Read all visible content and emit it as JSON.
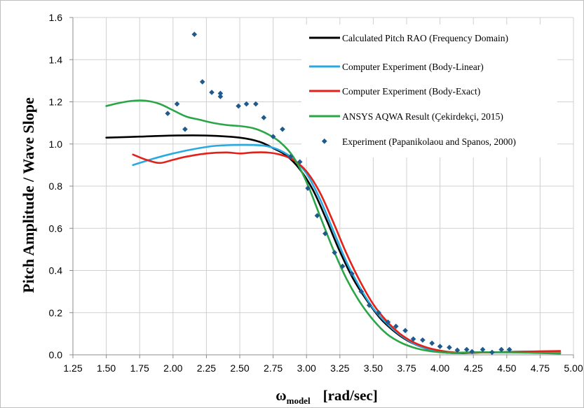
{
  "chart_data": {
    "type": "line",
    "title": "",
    "xlabel_main": "ω",
    "xlabel_sub": "model",
    "xlabel_unit": "[rad/sec]",
    "ylabel": "Pitch Amplitude / Wave Slope",
    "xlim": [
      1.25,
      5.0
    ],
    "ylim": [
      0.0,
      1.6
    ],
    "x_ticks": [
      1.25,
      1.5,
      1.75,
      2.0,
      2.25,
      2.5,
      2.75,
      3.0,
      3.25,
      3.5,
      3.75,
      4.0,
      4.25,
      4.5,
      4.75,
      5.0
    ],
    "x_tick_labels": [
      "1.25",
      "1.50",
      "1.75",
      "2.00",
      "2.25",
      "2.50",
      "2.75",
      "3.00",
      "3.25",
      "3.50",
      "3.75",
      "4.00",
      "4.25",
      "4.50",
      "4.75",
      "5.00"
    ],
    "y_ticks": [
      0.0,
      0.2,
      0.4,
      0.6,
      0.8,
      1.0,
      1.2,
      1.4,
      1.6
    ],
    "y_tick_labels": [
      "0.0",
      "0.2",
      "0.4",
      "0.6",
      "0.8",
      "1.0",
      "1.2",
      "1.4",
      "1.6"
    ],
    "grid": true,
    "legend_position": "top-right",
    "series": [
      {
        "name": "Calculated Pitch RAO (Frequency Domain)",
        "kind": "line",
        "color": "#000000",
        "points": [
          [
            1.5,
            1.03
          ],
          [
            1.75,
            1.035
          ],
          [
            2.0,
            1.04
          ],
          [
            2.25,
            1.04
          ],
          [
            2.5,
            1.03
          ],
          [
            2.65,
            1.01
          ],
          [
            2.75,
            0.98
          ],
          [
            2.85,
            0.945
          ],
          [
            2.95,
            0.88
          ],
          [
            3.05,
            0.78
          ],
          [
            3.15,
            0.64
          ],
          [
            3.25,
            0.49
          ],
          [
            3.35,
            0.36
          ],
          [
            3.45,
            0.26
          ],
          [
            3.55,
            0.175
          ],
          [
            3.65,
            0.115
          ],
          [
            3.75,
            0.07
          ],
          [
            3.85,
            0.04
          ],
          [
            3.95,
            0.02
          ],
          [
            4.05,
            0.01
          ],
          [
            4.15,
            0.008
          ],
          [
            4.25,
            0.01
          ],
          [
            4.4,
            0.012
          ],
          [
            4.6,
            0.012
          ],
          [
            4.9,
            0.01
          ]
        ]
      },
      {
        "name": "Computer Experiment (Body-Linear)",
        "kind": "line",
        "color": "#29a9e0",
        "points": [
          [
            1.7,
            0.9
          ],
          [
            1.85,
            0.93
          ],
          [
            2.0,
            0.955
          ],
          [
            2.15,
            0.975
          ],
          [
            2.3,
            0.99
          ],
          [
            2.45,
            0.995
          ],
          [
            2.6,
            0.995
          ],
          [
            2.7,
            0.99
          ],
          [
            2.8,
            0.97
          ],
          [
            2.9,
            0.93
          ],
          [
            3.0,
            0.86
          ],
          [
            3.1,
            0.74
          ],
          [
            3.2,
            0.59
          ],
          [
            3.3,
            0.44
          ],
          [
            3.4,
            0.32
          ],
          [
            3.5,
            0.22
          ],
          [
            3.6,
            0.15
          ],
          [
            3.7,
            0.095
          ],
          [
            3.8,
            0.055
          ],
          [
            3.9,
            0.03
          ],
          [
            4.0,
            0.015
          ],
          [
            4.1,
            0.008
          ],
          [
            4.2,
            0.01
          ],
          [
            4.4,
            0.012
          ],
          [
            4.6,
            0.012
          ],
          [
            4.9,
            0.01
          ]
        ]
      },
      {
        "name": "Computer Experiment (Body-Exact)",
        "kind": "line",
        "color": "#e32119",
        "points": [
          [
            1.7,
            0.95
          ],
          [
            1.8,
            0.925
          ],
          [
            1.9,
            0.91
          ],
          [
            2.0,
            0.925
          ],
          [
            2.1,
            0.94
          ],
          [
            2.25,
            0.955
          ],
          [
            2.4,
            0.96
          ],
          [
            2.5,
            0.955
          ],
          [
            2.6,
            0.96
          ],
          [
            2.7,
            0.96
          ],
          [
            2.8,
            0.95
          ],
          [
            2.9,
            0.925
          ],
          [
            3.0,
            0.87
          ],
          [
            3.1,
            0.77
          ],
          [
            3.2,
            0.63
          ],
          [
            3.3,
            0.48
          ],
          [
            3.4,
            0.35
          ],
          [
            3.5,
            0.24
          ],
          [
            3.6,
            0.16
          ],
          [
            3.7,
            0.1
          ],
          [
            3.8,
            0.06
          ],
          [
            3.9,
            0.035
          ],
          [
            4.0,
            0.02
          ],
          [
            4.1,
            0.012
          ],
          [
            4.2,
            0.01
          ],
          [
            4.4,
            0.012
          ],
          [
            4.6,
            0.015
          ],
          [
            4.9,
            0.018
          ]
        ]
      },
      {
        "name": "ANSYS AQWA Result (Çekirdekçi, 2015)",
        "kind": "line",
        "color": "#2aa648",
        "points": [
          [
            1.5,
            1.18
          ],
          [
            1.6,
            1.195
          ],
          [
            1.7,
            1.205
          ],
          [
            1.8,
            1.205
          ],
          [
            1.9,
            1.19
          ],
          [
            2.0,
            1.16
          ],
          [
            2.1,
            1.13
          ],
          [
            2.2,
            1.115
          ],
          [
            2.3,
            1.1
          ],
          [
            2.4,
            1.09
          ],
          [
            2.5,
            1.085
          ],
          [
            2.6,
            1.075
          ],
          [
            2.7,
            1.05
          ],
          [
            2.8,
            1.01
          ],
          [
            2.9,
            0.94
          ],
          [
            3.0,
            0.82
          ],
          [
            3.1,
            0.66
          ],
          [
            3.2,
            0.5
          ],
          [
            3.3,
            0.36
          ],
          [
            3.4,
            0.25
          ],
          [
            3.5,
            0.165
          ],
          [
            3.6,
            0.1
          ],
          [
            3.7,
            0.06
          ],
          [
            3.8,
            0.035
          ],
          [
            3.9,
            0.02
          ],
          [
            4.0,
            0.012
          ],
          [
            4.1,
            0.01
          ],
          [
            4.25,
            0.012
          ],
          [
            4.5,
            0.012
          ],
          [
            4.9,
            0.006
          ]
        ]
      },
      {
        "name": "Experiment (Papanikolaou and Spanos, 2000)",
        "kind": "scatter",
        "color": "#1f5a8c",
        "points": [
          [
            1.96,
            1.145
          ],
          [
            2.03,
            1.19
          ],
          [
            2.09,
            1.07
          ],
          [
            2.16,
            1.52
          ],
          [
            2.22,
            1.295
          ],
          [
            2.29,
            1.245
          ],
          [
            2.355,
            1.225
          ],
          [
            2.355,
            1.24
          ],
          [
            2.49,
            1.18
          ],
          [
            2.55,
            1.19
          ],
          [
            2.62,
            1.19
          ],
          [
            2.68,
            1.125
          ],
          [
            2.75,
            1.035
          ],
          [
            2.82,
            1.07
          ],
          [
            2.88,
            0.94
          ],
          [
            2.95,
            0.915
          ],
          [
            3.01,
            0.79
          ],
          [
            3.08,
            0.66
          ],
          [
            3.14,
            0.575
          ],
          [
            3.21,
            0.485
          ],
          [
            3.27,
            0.42
          ],
          [
            3.34,
            0.385
          ],
          [
            3.41,
            0.3
          ],
          [
            3.47,
            0.235
          ],
          [
            3.54,
            0.2
          ],
          [
            3.61,
            0.155
          ],
          [
            3.67,
            0.135
          ],
          [
            3.74,
            0.115
          ],
          [
            3.8,
            0.075
          ],
          [
            3.87,
            0.07
          ],
          [
            3.94,
            0.055
          ],
          [
            4.0,
            0.04
          ],
          [
            4.07,
            0.035
          ],
          [
            4.13,
            0.022
          ],
          [
            4.2,
            0.025
          ],
          [
            4.24,
            0.015
          ],
          [
            4.32,
            0.025
          ],
          [
            4.39,
            0.012
          ],
          [
            4.46,
            0.025
          ],
          [
            4.52,
            0.025
          ]
        ]
      }
    ]
  }
}
